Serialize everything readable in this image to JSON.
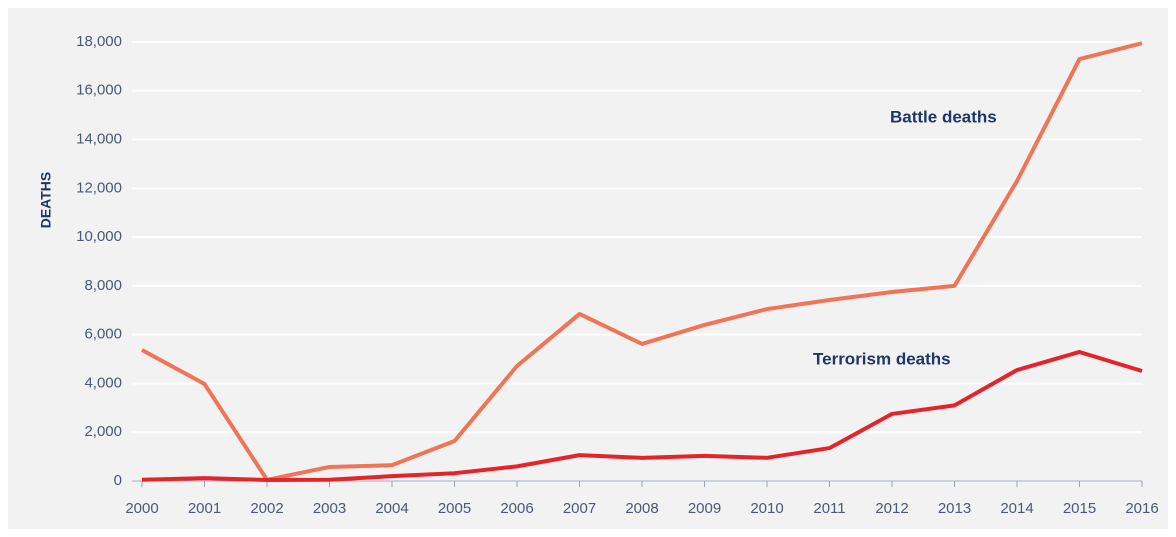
{
  "chart_data": {
    "type": "line",
    "y_label": "DEATHS",
    "x": [
      2000,
      2001,
      2002,
      2003,
      2004,
      2005,
      2006,
      2007,
      2008,
      2009,
      2010,
      2011,
      2012,
      2013,
      2014,
      2015,
      2016
    ],
    "series": [
      {
        "name": "Battle deaths",
        "color": "#f07456",
        "values": [
          5370,
          3980,
          50,
          575,
          650,
          1640,
          4715,
          6850,
          5620,
          6400,
          7050,
          7420,
          7750,
          8000,
          12300,
          17300,
          17950
        ]
      },
      {
        "name": "Terrorism deaths",
        "color": "#e5232b",
        "values": [
          50,
          120,
          40,
          50,
          200,
          320,
          600,
          1060,
          950,
          1030,
          950,
          1350,
          2750,
          3100,
          4550,
          5290,
          4510
        ]
      }
    ],
    "xlim": [
      2000,
      2016
    ],
    "xticks": [
      2000,
      2001,
      2002,
      2003,
      2004,
      2005,
      2006,
      2007,
      2008,
      2009,
      2010,
      2011,
      2012,
      2013,
      2014,
      2015,
      2016
    ],
    "ylim": [
      0,
      18000
    ],
    "yticks": [
      0,
      {
        "value": 2000,
        "label": "2,000"
      },
      {
        "value": 4000,
        "label": "4,000"
      },
      {
        "value": 6000,
        "label": "6,000"
      },
      {
        "value": 8000,
        "label": "8,000"
      },
      {
        "value": 10000,
        "label": "10,000"
      },
      {
        "value": 12000,
        "label": "12,000"
      },
      {
        "value": 14000,
        "label": "14,000"
      },
      {
        "value": 16000,
        "label": "16,000"
      },
      {
        "value": 18000,
        "label": "18,000"
      }
    ],
    "grid": true
  }
}
